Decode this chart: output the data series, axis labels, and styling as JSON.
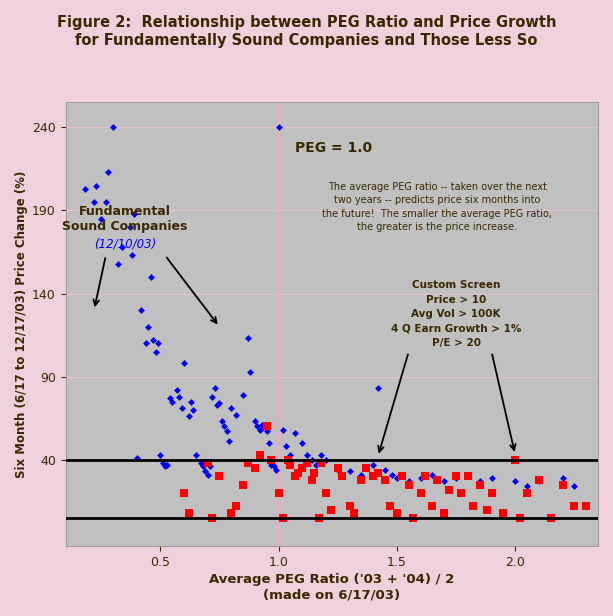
{
  "title": "Figure 2:  Relationship between PEG Ratio and Price Growth\nfor Fundamentally Sound Companies and Those Less So",
  "xlabel": "Average PEG Ratio ('03 + '04) / 2\n(made on 6/17/03)",
  "ylabel": "Six Month (6/17 to 12/17/03) Price Change (%)",
  "xlim": [
    0.1,
    2.35
  ],
  "ylim": [
    -12,
    255
  ],
  "yticks": [
    40,
    90,
    140,
    190,
    240
  ],
  "xticks": [
    0.5,
    1.0,
    1.5,
    2.0
  ],
  "fig_bg": "#f0d0dc",
  "plot_bg": "#c0c0c0",
  "peg_line_x": 1.0,
  "hline_y1": 40,
  "hline_y2": 5,
  "blue_dots": [
    [
      0.18,
      203
    ],
    [
      0.22,
      195
    ],
    [
      0.23,
      205
    ],
    [
      0.25,
      185
    ],
    [
      0.27,
      195
    ],
    [
      0.28,
      213
    ],
    [
      0.3,
      240
    ],
    [
      0.32,
      158
    ],
    [
      0.34,
      168
    ],
    [
      0.37,
      180
    ],
    [
      0.38,
      163
    ],
    [
      0.39,
      188
    ],
    [
      0.4,
      41
    ],
    [
      0.42,
      130
    ],
    [
      0.44,
      110
    ],
    [
      0.45,
      120
    ],
    [
      0.46,
      150
    ],
    [
      0.47,
      112
    ],
    [
      0.48,
      105
    ],
    [
      0.49,
      110
    ],
    [
      0.5,
      43
    ],
    [
      0.51,
      38
    ],
    [
      0.52,
      36
    ],
    [
      0.53,
      37
    ],
    [
      0.54,
      77
    ],
    [
      0.55,
      75
    ],
    [
      0.57,
      82
    ],
    [
      0.58,
      78
    ],
    [
      0.59,
      71
    ],
    [
      0.6,
      98
    ],
    [
      0.62,
      66
    ],
    [
      0.63,
      75
    ],
    [
      0.64,
      70
    ],
    [
      0.65,
      43
    ],
    [
      0.67,
      38
    ],
    [
      0.68,
      36
    ],
    [
      0.69,
      33
    ],
    [
      0.7,
      31
    ],
    [
      0.71,
      36
    ],
    [
      0.72,
      78
    ],
    [
      0.73,
      83
    ],
    [
      0.74,
      73
    ],
    [
      0.75,
      74
    ],
    [
      0.76,
      63
    ],
    [
      0.77,
      60
    ],
    [
      0.78,
      57
    ],
    [
      0.79,
      51
    ],
    [
      0.8,
      71
    ],
    [
      0.82,
      67
    ],
    [
      0.85,
      79
    ],
    [
      0.87,
      113
    ],
    [
      0.88,
      93
    ],
    [
      0.9,
      63
    ],
    [
      0.91,
      60
    ],
    [
      0.92,
      58
    ],
    [
      0.93,
      61
    ],
    [
      0.94,
      61
    ],
    [
      0.95,
      57
    ],
    [
      0.96,
      50
    ],
    [
      0.97,
      37
    ],
    [
      0.98,
      36
    ],
    [
      0.99,
      34
    ],
    [
      1.0,
      240
    ],
    [
      1.02,
      58
    ],
    [
      1.03,
      48
    ],
    [
      1.05,
      43
    ],
    [
      1.07,
      56
    ],
    [
      1.1,
      50
    ],
    [
      1.12,
      43
    ],
    [
      1.14,
      40
    ],
    [
      1.16,
      37
    ],
    [
      1.18,
      43
    ],
    [
      1.2,
      40
    ],
    [
      1.25,
      34
    ],
    [
      1.3,
      33
    ],
    [
      1.35,
      31
    ],
    [
      1.4,
      37
    ],
    [
      1.42,
      83
    ],
    [
      1.45,
      34
    ],
    [
      1.48,
      31
    ],
    [
      1.5,
      29
    ],
    [
      1.55,
      27
    ],
    [
      1.6,
      29
    ],
    [
      1.65,
      31
    ],
    [
      1.7,
      27
    ],
    [
      1.75,
      29
    ],
    [
      1.8,
      31
    ],
    [
      1.85,
      27
    ],
    [
      1.9,
      29
    ],
    [
      2.0,
      27
    ],
    [
      2.05,
      24
    ],
    [
      2.1,
      27
    ],
    [
      2.2,
      29
    ],
    [
      2.25,
      24
    ]
  ],
  "red_squares": [
    [
      0.6,
      20
    ],
    [
      0.62,
      8
    ],
    [
      0.7,
      38
    ],
    [
      0.72,
      5
    ],
    [
      0.75,
      30
    ],
    [
      0.8,
      8
    ],
    [
      0.82,
      12
    ],
    [
      0.85,
      25
    ],
    [
      0.87,
      38
    ],
    [
      0.9,
      35
    ],
    [
      0.92,
      43
    ],
    [
      0.95,
      60
    ],
    [
      0.97,
      40
    ],
    [
      1.0,
      20
    ],
    [
      1.02,
      5
    ],
    [
      1.04,
      40
    ],
    [
      1.05,
      37
    ],
    [
      1.07,
      30
    ],
    [
      1.08,
      32
    ],
    [
      1.1,
      35
    ],
    [
      1.12,
      38
    ],
    [
      1.14,
      28
    ],
    [
      1.15,
      32
    ],
    [
      1.17,
      5
    ],
    [
      1.18,
      38
    ],
    [
      1.2,
      20
    ],
    [
      1.22,
      10
    ],
    [
      1.25,
      35
    ],
    [
      1.27,
      30
    ],
    [
      1.3,
      12
    ],
    [
      1.32,
      8
    ],
    [
      1.35,
      28
    ],
    [
      1.37,
      35
    ],
    [
      1.4,
      30
    ],
    [
      1.42,
      32
    ],
    [
      1.45,
      28
    ],
    [
      1.47,
      12
    ],
    [
      1.5,
      8
    ],
    [
      1.52,
      30
    ],
    [
      1.55,
      25
    ],
    [
      1.57,
      5
    ],
    [
      1.6,
      20
    ],
    [
      1.62,
      30
    ],
    [
      1.65,
      12
    ],
    [
      1.67,
      28
    ],
    [
      1.7,
      8
    ],
    [
      1.72,
      22
    ],
    [
      1.75,
      30
    ],
    [
      1.77,
      20
    ],
    [
      1.8,
      30
    ],
    [
      1.82,
      12
    ],
    [
      1.85,
      25
    ],
    [
      1.88,
      10
    ],
    [
      1.9,
      20
    ],
    [
      1.95,
      8
    ],
    [
      2.0,
      40
    ],
    [
      2.02,
      5
    ],
    [
      2.05,
      20
    ],
    [
      2.1,
      28
    ],
    [
      2.15,
      5
    ],
    [
      2.2,
      25
    ],
    [
      2.25,
      12
    ],
    [
      2.3,
      12
    ]
  ],
  "annotation_text": "The average PEG ratio -- taken over the next\ntwo years -- predicts price six months into\nthe future!  The smaller the average PEG ratio,\nthe greater is the price increase.",
  "annotation_custom_screen": "Custom Screen\nPrice > 10\nAvg Vol > 100K\n4 Q Earn Growth > 1%\nP/E > 20",
  "peg_label": "PEG = 1.0",
  "text_color": "#3a2800",
  "grid_color": "#e8c0d0"
}
